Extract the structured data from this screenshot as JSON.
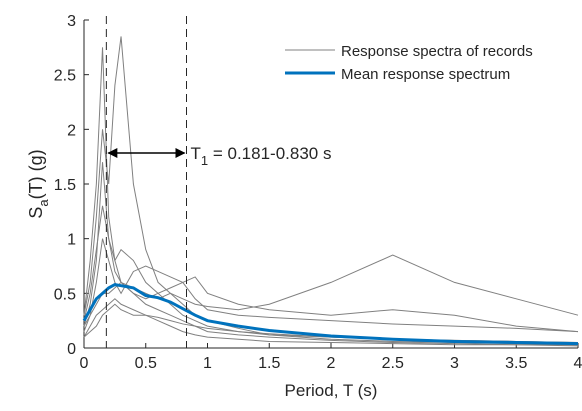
{
  "chart_data": {
    "type": "line",
    "x_label": "Period, T (s)",
    "y_label": {
      "main": "S",
      "sub": "a",
      "rest": "(T) (g)"
    },
    "x": [
      0,
      0.05,
      0.1,
      0.15,
      0.2,
      0.25,
      0.3,
      0.4,
      0.5,
      0.6,
      0.7,
      0.8,
      0.9,
      1.0,
      1.25,
      1.5,
      2,
      2.5,
      3,
      3.5,
      4
    ],
    "series": [
      {
        "name": "Response spectra of records",
        "color": "#808080",
        "values": [
          0.3,
          0.6,
          1.2,
          2.0,
          1.5,
          2.4,
          2.85,
          1.5,
          0.9,
          0.6,
          0.5,
          0.4,
          0.3,
          0.25,
          0.18,
          0.12,
          0.08,
          0.06,
          0.05,
          0.04,
          0.03
        ]
      },
      {
        "color": "#808080",
        "values": [
          0.3,
          0.8,
          1.5,
          2.75,
          1.2,
          0.8,
          0.6,
          0.5,
          0.4,
          0.35,
          0.3,
          0.25,
          0.2,
          0.15,
          0.12,
          0.1,
          0.07,
          0.05,
          0.04,
          0.03,
          0.03
        ]
      },
      {
        "color": "#808080",
        "values": [
          0.2,
          0.3,
          0.4,
          0.5,
          0.5,
          0.55,
          0.6,
          0.55,
          0.5,
          0.45,
          0.5,
          0.45,
          0.4,
          0.38,
          0.35,
          0.4,
          0.6,
          0.85,
          0.6,
          0.45,
          0.3
        ]
      },
      {
        "color": "#808080",
        "values": [
          0.15,
          0.3,
          0.6,
          1.0,
          0.8,
          0.6,
          0.5,
          0.7,
          0.75,
          0.7,
          0.65,
          0.6,
          0.45,
          0.35,
          0.3,
          0.28,
          0.25,
          0.22,
          0.2,
          0.18,
          0.15
        ]
      },
      {
        "color": "#808080",
        "values": [
          0.1,
          0.2,
          0.3,
          0.35,
          0.4,
          0.45,
          0.4,
          0.35,
          0.3,
          0.28,
          0.25,
          0.22,
          0.2,
          0.18,
          0.15,
          0.13,
          0.1,
          0.08,
          0.07,
          0.06,
          0.05
        ]
      },
      {
        "color": "#808080",
        "values": [
          0.2,
          0.4,
          0.8,
          1.7,
          1.0,
          0.7,
          0.6,
          0.5,
          0.45,
          0.5,
          0.55,
          0.6,
          0.65,
          0.5,
          0.4,
          0.35,
          0.3,
          0.35,
          0.3,
          0.2,
          0.15
        ]
      },
      {
        "color": "#808080",
        "values": [
          0.1,
          0.15,
          0.2,
          0.3,
          0.35,
          0.4,
          0.35,
          0.3,
          0.3,
          0.25,
          0.2,
          0.15,
          0.12,
          0.1,
          0.08,
          0.06,
          0.05,
          0.04,
          0.03,
          0.03,
          0.02
        ]
      },
      {
        "color": "#808080",
        "values": [
          0.25,
          0.5,
          0.9,
          1.3,
          1.0,
          0.8,
          0.9,
          0.8,
          0.6,
          0.5,
          0.4,
          0.3,
          0.25,
          0.2,
          0.15,
          0.12,
          0.1,
          0.08,
          0.07,
          0.06,
          0.05
        ]
      },
      {
        "name": "Mean response spectrum",
        "color": "#0072bd",
        "values": [
          0.25,
          0.35,
          0.45,
          0.5,
          0.55,
          0.58,
          0.57,
          0.55,
          0.48,
          0.46,
          0.42,
          0.36,
          0.3,
          0.25,
          0.2,
          0.16,
          0.11,
          0.08,
          0.06,
          0.05,
          0.04
        ]
      }
    ],
    "vlines": [
      0.181,
      0.83
    ],
    "annotation": {
      "main": "T",
      "sub": "1",
      "rest": " = 0.181-0.830 s"
    },
    "xlim": [
      0,
      4
    ],
    "xticks": [
      0,
      0.5,
      1,
      1.5,
      2,
      2.5,
      3,
      3.5,
      4
    ],
    "ylim": [
      0,
      3
    ],
    "yticks": [
      0,
      0.5,
      1,
      1.5,
      2,
      2.5,
      3
    ],
    "legend": "upper right"
  }
}
